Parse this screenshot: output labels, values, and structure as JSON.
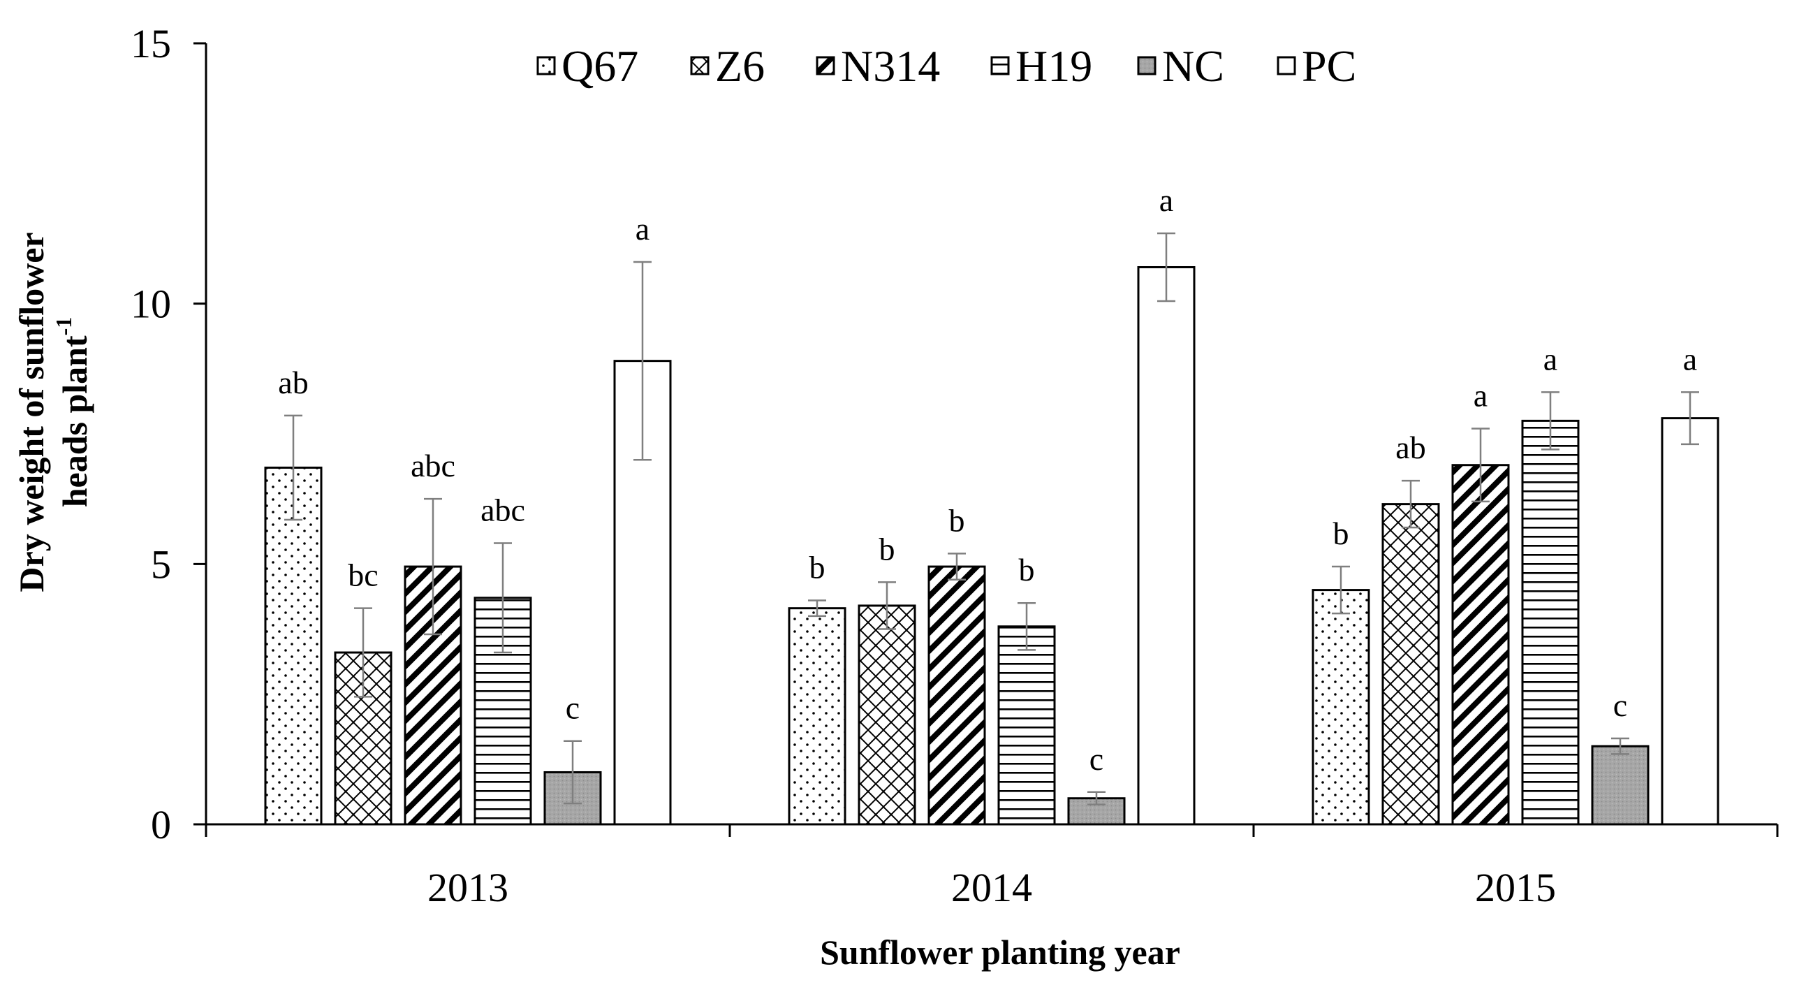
{
  "chart_data": {
    "type": "bar",
    "categories": [
      "2013",
      "2014",
      "2015"
    ],
    "xlabel": "Sunflower planting year",
    "ylabel_line1": "Dry weight of sunflower",
    "ylabel_line2": "heads plant",
    "ylabel_sup": "-1",
    "ylim": [
      0,
      15
    ],
    "yticks": [
      0,
      5,
      10,
      15
    ],
    "legend_position": "top-center",
    "series": [
      {
        "name": "Q67",
        "pattern": "dots",
        "values": [
          6.85,
          4.15,
          4.5
        ],
        "errors": [
          1.0,
          0.15,
          0.45
        ],
        "labels": [
          "ab",
          "b",
          "b"
        ]
      },
      {
        "name": "Z6",
        "pattern": "crosshatch",
        "values": [
          3.3,
          4.2,
          6.15
        ],
        "errors": [
          0.85,
          0.45,
          0.45
        ],
        "labels": [
          "bc",
          "b",
          "ab"
        ]
      },
      {
        "name": "N314",
        "pattern": "diagonal",
        "values": [
          4.95,
          4.95,
          6.9
        ],
        "errors": [
          1.3,
          0.25,
          0.7
        ],
        "labels": [
          "abc",
          "b",
          "a"
        ]
      },
      {
        "name": "H19",
        "pattern": "horizontal",
        "values": [
          4.35,
          3.8,
          7.75
        ],
        "errors": [
          1.05,
          0.45,
          0.55
        ],
        "labels": [
          "abc",
          "b",
          "a"
        ]
      },
      {
        "name": "NC",
        "pattern": "gray",
        "values": [
          1.0,
          0.5,
          1.5
        ],
        "errors": [
          0.6,
          0.12,
          0.15
        ],
        "labels": [
          "c",
          "c",
          "c"
        ]
      },
      {
        "name": "PC",
        "pattern": "empty",
        "values": [
          8.9,
          10.7,
          7.8
        ],
        "errors": [
          1.9,
          0.65,
          0.5
        ],
        "labels": [
          "a",
          "a",
          "a"
        ]
      }
    ]
  }
}
